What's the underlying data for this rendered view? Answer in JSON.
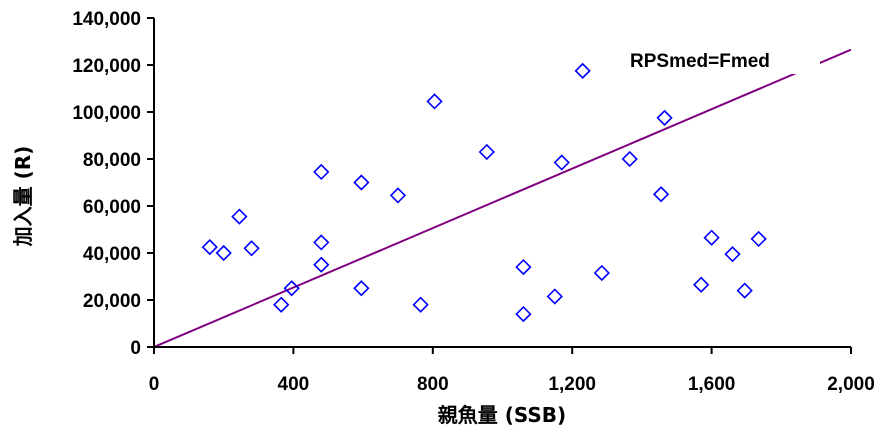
{
  "chart_data": {
    "type": "scatter",
    "title": "",
    "xlabel": "親魚量 (SSB)",
    "ylabel": "加入量 (R)",
    "xlim": [
      0,
      2000
    ],
    "ylim": [
      0,
      140000
    ],
    "x_ticks": [
      "0",
      "400",
      "800",
      "1,200",
      "1,600",
      "2,000"
    ],
    "y_ticks": [
      "0",
      "20,000",
      "40,000",
      "60,000",
      "80,000",
      "100,000",
      "120,000",
      "140,000"
    ],
    "grid": false,
    "legend": "none",
    "series": [
      {
        "marker": "diamond-open",
        "color": "#0000ff",
        "points": [
          {
            "x": 160,
            "y": 42500
          },
          {
            "x": 200,
            "y": 40000
          },
          {
            "x": 245,
            "y": 55500
          },
          {
            "x": 280,
            "y": 42000
          },
          {
            "x": 365,
            "y": 18000
          },
          {
            "x": 395,
            "y": 25000
          },
          {
            "x": 480,
            "y": 74500
          },
          {
            "x": 480,
            "y": 44500
          },
          {
            "x": 480,
            "y": 35000
          },
          {
            "x": 595,
            "y": 70000
          },
          {
            "x": 595,
            "y": 25000
          },
          {
            "x": 700,
            "y": 64500
          },
          {
            "x": 765,
            "y": 18000
          },
          {
            "x": 805,
            "y": 104500
          },
          {
            "x": 955,
            "y": 83000
          },
          {
            "x": 1060,
            "y": 34000
          },
          {
            "x": 1060,
            "y": 14000
          },
          {
            "x": 1150,
            "y": 21500
          },
          {
            "x": 1170,
            "y": 78500
          },
          {
            "x": 1230,
            "y": 117500
          },
          {
            "x": 1285,
            "y": 31500
          },
          {
            "x": 1365,
            "y": 80000
          },
          {
            "x": 1455,
            "y": 65000
          },
          {
            "x": 1465,
            "y": 97500
          },
          {
            "x": 1570,
            "y": 26500
          },
          {
            "x": 1600,
            "y": 46500
          },
          {
            "x": 1660,
            "y": 39500
          },
          {
            "x": 1695,
            "y": 24000
          },
          {
            "x": 1735,
            "y": 46000
          }
        ]
      }
    ],
    "reference_line": {
      "label": "RPSmed=Fmed",
      "color": "#800080",
      "from": [
        0,
        0
      ],
      "to": [
        2000,
        126500
      ]
    }
  }
}
